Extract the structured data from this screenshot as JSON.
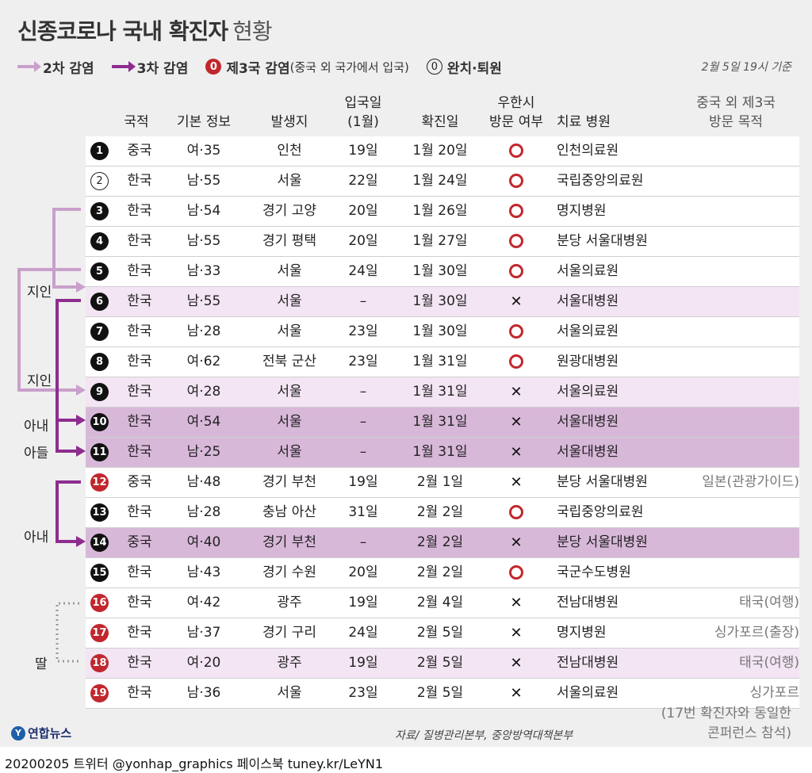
{
  "title": {
    "main": "신종코로나 국내 확진자",
    "sub": "현황"
  },
  "legend": {
    "second": "2차 감염",
    "third": "3차 감염",
    "foreign_badge": "0",
    "foreign": "제3국 감염",
    "foreign_note": "(중국 외 국가에서 입국)",
    "recovered_badge": "0",
    "recovered": "완치·퇴원"
  },
  "timestamp": "2월 5일 19시 기준",
  "headers": {
    "nationality": "국적",
    "basic": "기본 정보",
    "location": "발생지",
    "entry": "입국일",
    "entry_sub": "(1월)",
    "confirmed": "확진일",
    "wuhan": "우한시",
    "wuhan_sub": "방문 여부",
    "hospital": "치료 병원",
    "purpose": "중국 외 제3국",
    "purpose_sub": "방문 목적"
  },
  "rows": [
    {
      "no": "1",
      "badge": "black",
      "nat": "중국",
      "info": "여·35",
      "loc": "인천",
      "entry": "19일",
      "conf": "1월 20일",
      "wuhan": "O",
      "hosp": "인천의료원",
      "purpose": "",
      "bg": ""
    },
    {
      "no": "2",
      "badge": "ring",
      "nat": "한국",
      "info": "남·55",
      "loc": "서울",
      "entry": "22일",
      "conf": "1월 24일",
      "wuhan": "O",
      "hosp": "국립중앙의료원",
      "purpose": "",
      "bg": ""
    },
    {
      "no": "3",
      "badge": "black",
      "nat": "한국",
      "info": "남·54",
      "loc": "경기 고양",
      "entry": "20일",
      "conf": "1월 26일",
      "wuhan": "O",
      "hosp": "명지병원",
      "purpose": "",
      "bg": ""
    },
    {
      "no": "4",
      "badge": "black",
      "nat": "한국",
      "info": "남·55",
      "loc": "경기 평택",
      "entry": "20일",
      "conf": "1월 27일",
      "wuhan": "O",
      "hosp": "분당 서울대병원",
      "purpose": "",
      "bg": ""
    },
    {
      "no": "5",
      "badge": "black",
      "nat": "한국",
      "info": "남·33",
      "loc": "서울",
      "entry": "24일",
      "conf": "1월 30일",
      "wuhan": "O",
      "hosp": "서울의료원",
      "purpose": "",
      "bg": ""
    },
    {
      "no": "6",
      "badge": "black",
      "nat": "한국",
      "info": "남·55",
      "loc": "서울",
      "entry": "–",
      "conf": "1월 30일",
      "wuhan": "X",
      "hosp": "서울대병원",
      "purpose": "",
      "bg": "light"
    },
    {
      "no": "7",
      "badge": "black",
      "nat": "한국",
      "info": "남·28",
      "loc": "서울",
      "entry": "23일",
      "conf": "1월 30일",
      "wuhan": "O",
      "hosp": "서울의료원",
      "purpose": "",
      "bg": ""
    },
    {
      "no": "8",
      "badge": "black",
      "nat": "한국",
      "info": "여·62",
      "loc": "전북 군산",
      "entry": "23일",
      "conf": "1월 31일",
      "wuhan": "O",
      "hosp": "원광대병원",
      "purpose": "",
      "bg": ""
    },
    {
      "no": "9",
      "badge": "black",
      "nat": "한국",
      "info": "여·28",
      "loc": "서울",
      "entry": "–",
      "conf": "1월 31일",
      "wuhan": "X",
      "hosp": "서울의료원",
      "purpose": "",
      "bg": "light"
    },
    {
      "no": "10",
      "badge": "black",
      "nat": "한국",
      "info": "여·54",
      "loc": "서울",
      "entry": "–",
      "conf": "1월 31일",
      "wuhan": "X",
      "hosp": "서울대병원",
      "purpose": "",
      "bg": "dark"
    },
    {
      "no": "11",
      "badge": "black",
      "nat": "한국",
      "info": "남·25",
      "loc": "서울",
      "entry": "–",
      "conf": "1월 31일",
      "wuhan": "X",
      "hosp": "서울대병원",
      "purpose": "",
      "bg": "dark"
    },
    {
      "no": "12",
      "badge": "red",
      "nat": "중국",
      "info": "남·48",
      "loc": "경기 부천",
      "entry": "19일",
      "conf": "2월 1일",
      "wuhan": "X",
      "hosp": "분당 서울대병원",
      "purpose": "일본(관광가이드)",
      "bg": ""
    },
    {
      "no": "13",
      "badge": "black",
      "nat": "한국",
      "info": "남·28",
      "loc": "충남 아산",
      "entry": "31일",
      "conf": "2월 2일",
      "wuhan": "O",
      "hosp": "국립중앙의료원",
      "purpose": "",
      "bg": ""
    },
    {
      "no": "14",
      "badge": "black",
      "nat": "중국",
      "info": "여·40",
      "loc": "경기 부천",
      "entry": "–",
      "conf": "2월 2일",
      "wuhan": "X",
      "hosp": "분당 서울대병원",
      "purpose": "",
      "bg": "dark"
    },
    {
      "no": "15",
      "badge": "black",
      "nat": "한국",
      "info": "남·43",
      "loc": "경기 수원",
      "entry": "20일",
      "conf": "2월 2일",
      "wuhan": "O",
      "hosp": "국군수도병원",
      "purpose": "",
      "bg": ""
    },
    {
      "no": "16",
      "badge": "red",
      "nat": "한국",
      "info": "여·42",
      "loc": "광주",
      "entry": "19일",
      "conf": "2월 4일",
      "wuhan": "X",
      "hosp": "전남대병원",
      "purpose": "태국(여행)",
      "bg": ""
    },
    {
      "no": "17",
      "badge": "red",
      "nat": "한국",
      "info": "남·37",
      "loc": "경기 구리",
      "entry": "24일",
      "conf": "2월 5일",
      "wuhan": "X",
      "hosp": "명지병원",
      "purpose": "싱가포르(출장)",
      "bg": ""
    },
    {
      "no": "18",
      "badge": "red",
      "nat": "한국",
      "info": "여·20",
      "loc": "광주",
      "entry": "19일",
      "conf": "2월 5일",
      "wuhan": "X",
      "hosp": "전남대병원",
      "purpose": "태국(여행)",
      "bg": "light"
    },
    {
      "no": "19",
      "badge": "red",
      "nat": "한국",
      "info": "남·36",
      "loc": "서울",
      "entry": "23일",
      "conf": "2월 5일",
      "wuhan": "X",
      "hosp": "서울의료원",
      "purpose": "싱가포르",
      "bg": ""
    }
  ],
  "purpose_19_extra": [
    "(17번 확진자와 동일한",
    "콘퍼런스 참석)"
  ],
  "relations": {
    "acq1": "지인",
    "acq2": "지인",
    "wife1": "아내",
    "son": "아들",
    "wife2": "아내",
    "daughter": "딸"
  },
  "colors": {
    "second": "#c9a0cb",
    "third": "#8e2c8f",
    "red": "#c1272d"
  },
  "source": "자료/ 질병관리본부, 중앙방역대책본부",
  "logo": "연합뉴스",
  "bottom": "20200205  트위터 @yonhap_graphics  페이스북 tuney.kr/LeYN1"
}
